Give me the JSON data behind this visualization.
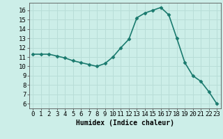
{
  "x": [
    0,
    1,
    2,
    3,
    4,
    5,
    6,
    7,
    8,
    9,
    10,
    11,
    12,
    13,
    14,
    15,
    16,
    17,
    18,
    19,
    20,
    21,
    22,
    23
  ],
  "y": [
    11.3,
    11.3,
    11.3,
    11.1,
    10.9,
    10.6,
    10.4,
    10.2,
    10.0,
    10.3,
    11.0,
    12.0,
    12.9,
    15.2,
    15.7,
    16.0,
    16.3,
    15.5,
    13.0,
    10.4,
    9.0,
    8.4,
    7.3,
    6.0
  ],
  "line_color": "#1a7a6e",
  "marker": "D",
  "marker_size": 2.5,
  "bg_color": "#cceee8",
  "grid_color": "#b8ddd7",
  "xlabel": "Humidex (Indice chaleur)",
  "ylabel_ticks": [
    6,
    7,
    8,
    9,
    10,
    11,
    12,
    13,
    14,
    15,
    16
  ],
  "ylim": [
    5.5,
    16.8
  ],
  "xlim": [
    -0.5,
    23.5
  ],
  "xlabel_fontsize": 7,
  "tick_fontsize": 6.5,
  "line_width": 1.2
}
